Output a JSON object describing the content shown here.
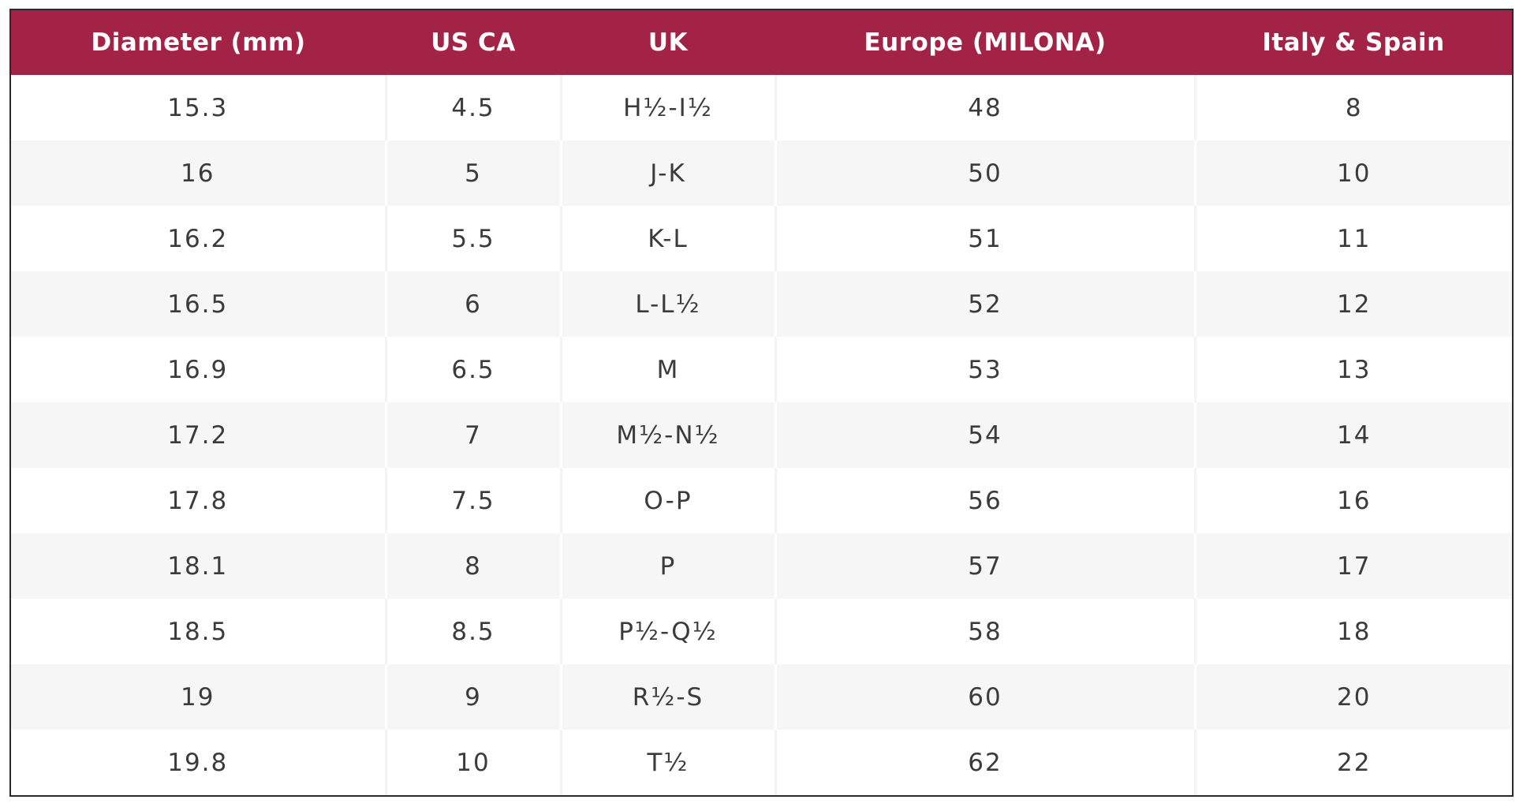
{
  "colors": {
    "header_bg": "#a32347",
    "header_text": "#ffffff",
    "row_alt_bg": "#f6f6f6",
    "cell_text": "#3b3b3b"
  },
  "table": {
    "headers": [
      "Diameter (mm)",
      "US CA",
      "UK",
      "Europe (MILONA)",
      "Italy & Spain"
    ],
    "rows": [
      [
        "15.3",
        "4.5",
        "H½-I½",
        "48",
        "8"
      ],
      [
        "16",
        "5",
        "J-K",
        "50",
        "10"
      ],
      [
        "16.2",
        "5.5",
        "K-L",
        "51",
        "11"
      ],
      [
        "16.5",
        "6",
        "L-L½",
        "52",
        "12"
      ],
      [
        "16.9",
        "6.5",
        "M",
        "53",
        "13"
      ],
      [
        "17.2",
        "7",
        "M½-N½",
        "54",
        "14"
      ],
      [
        "17.8",
        "7.5",
        "O-P",
        "56",
        "16"
      ],
      [
        "18.1",
        "8",
        "P",
        "57",
        "17"
      ],
      [
        "18.5",
        "8.5",
        "P½-Q½",
        "58",
        "18"
      ],
      [
        "19",
        "9",
        "R½-S",
        "60",
        "20"
      ],
      [
        "19.8",
        "10",
        "T½",
        "62",
        "22"
      ]
    ]
  }
}
